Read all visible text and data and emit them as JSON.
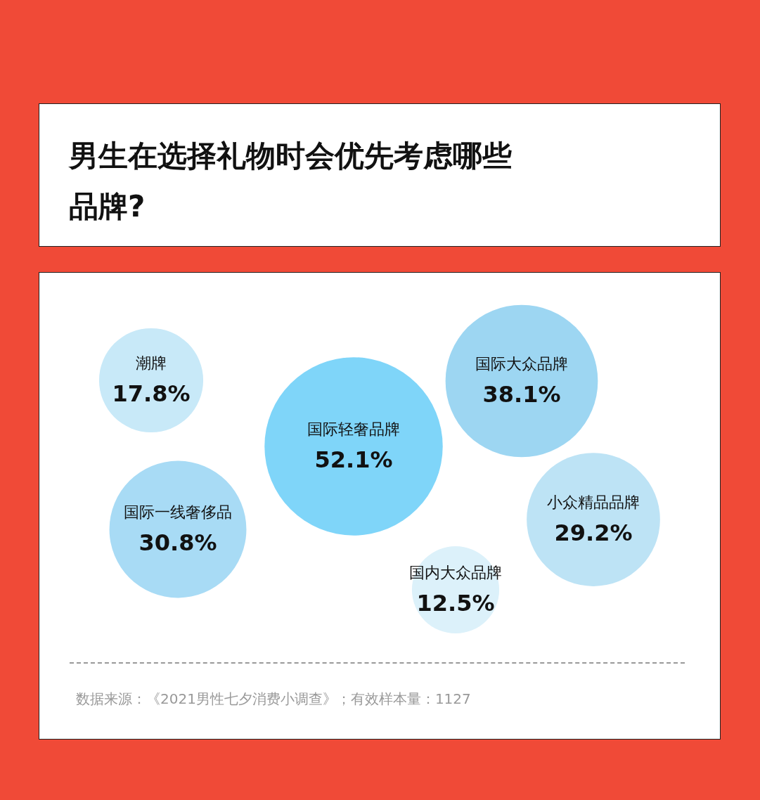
{
  "chart_data": {
    "type": "other",
    "title": "男生在选择礼物时会优先考虑哪些品牌?",
    "categories": [
      "潮牌",
      "国际轻奢品牌",
      "国际大众品牌",
      "国际一线奢侈品",
      "小众精品品牌",
      "国内大众品牌"
    ],
    "values": [
      17.8,
      52.1,
      38.1,
      30.8,
      29.2,
      12.5
    ],
    "value_labels": [
      "17.8%",
      "52.1%",
      "38.1%",
      "30.8%",
      "29.2%",
      "12.5%"
    ],
    "colors": [
      "#c8e9f8",
      "#7fd5f9",
      "#9dd6f2",
      "#a8dbf5",
      "#bde3f5",
      "#dcf1fa"
    ],
    "annotations": [
      "数据来源：《2021男性七夕消费小调查》；有效样本量：1127"
    ]
  }
}
